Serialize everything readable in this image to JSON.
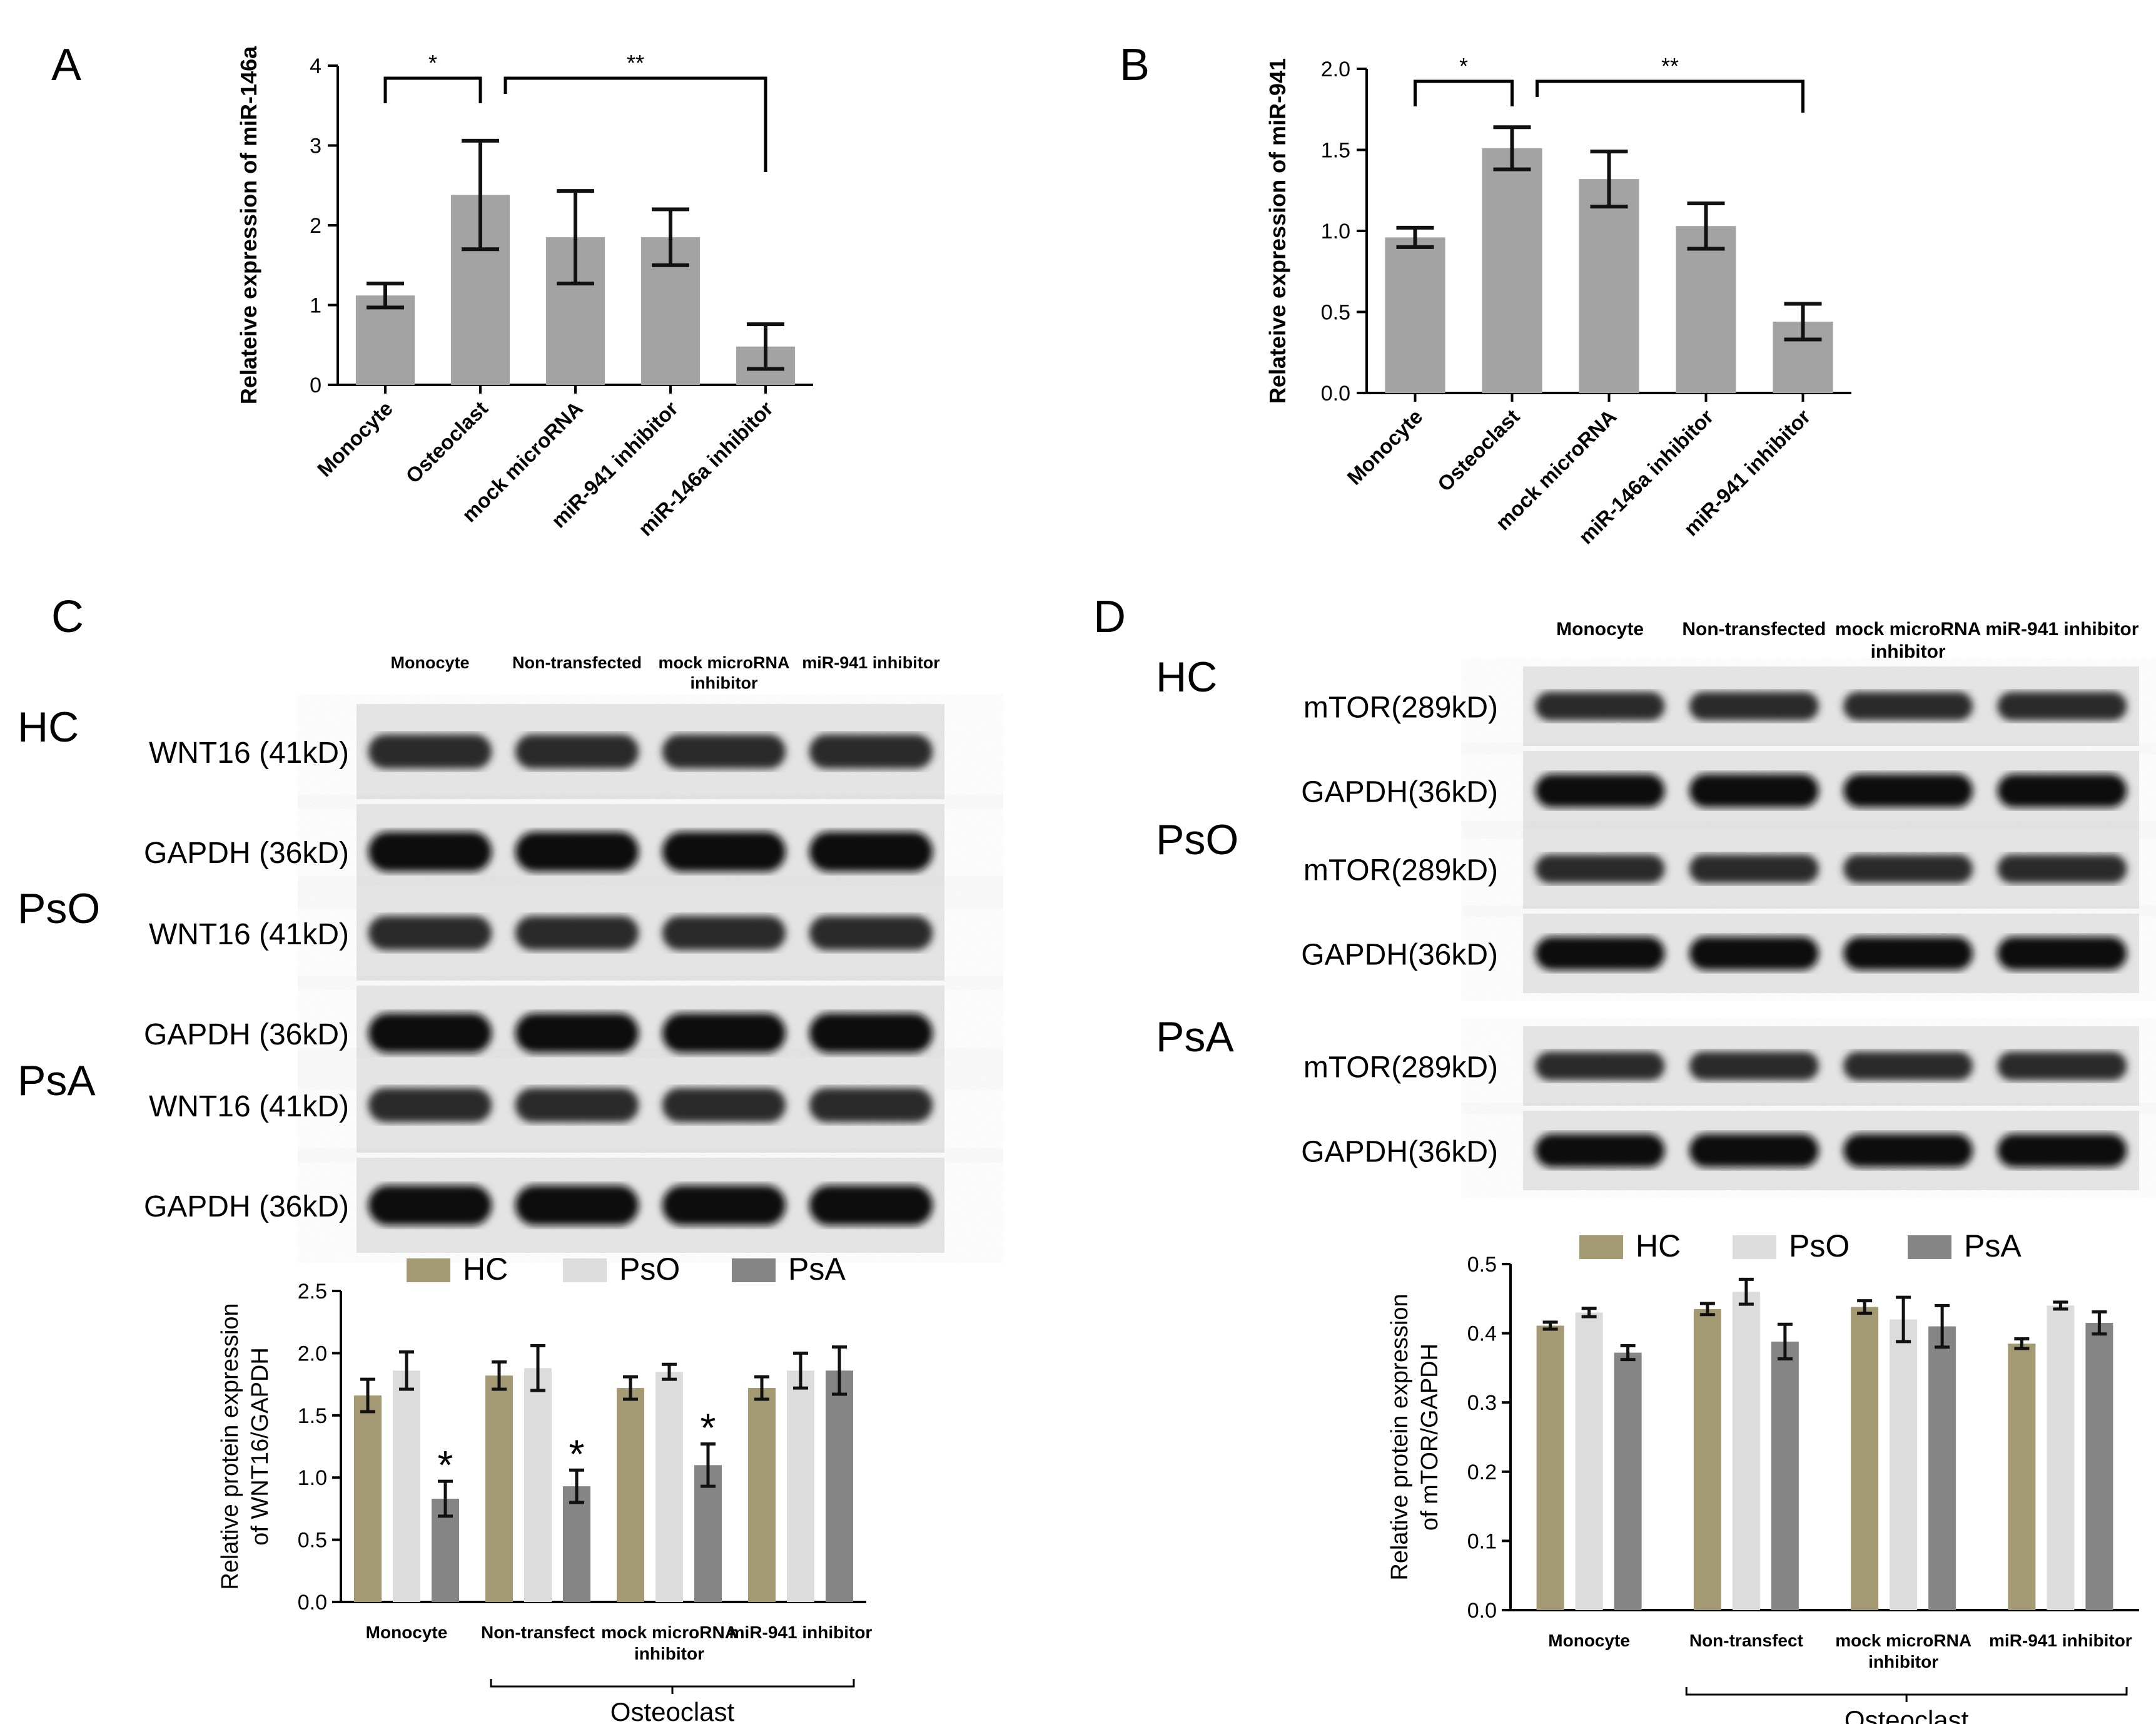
{
  "panels": {
    "A": "A",
    "B": "B",
    "C": "C",
    "D": "D"
  },
  "chart_data": [
    {
      "id": "A",
      "type": "bar",
      "categories": [
        "Monocyte",
        "Osteoclast",
        "mock microRNA",
        "miR-941 inhibitor",
        "miR-146a inhibitor"
      ],
      "values": [
        1.12,
        2.38,
        1.85,
        1.85,
        0.48
      ],
      "errors": [
        0.15,
        0.68,
        0.58,
        0.35,
        0.28
      ],
      "ylabel": "Relateive expression of miR-146a",
      "ylim": [
        0,
        4
      ],
      "yticks": [
        "0",
        "1",
        "2",
        "3",
        "4"
      ],
      "significance": [
        {
          "from": "Monocyte",
          "to": "Osteoclast",
          "label": "*"
        },
        {
          "from": "Osteoclast",
          "to": "miR-146a inhibitor",
          "label": "**"
        }
      ],
      "color": "#a3a3a3"
    },
    {
      "id": "B",
      "type": "bar",
      "categories": [
        "Monocyte",
        "Osteoclast",
        "mock microRNA",
        "miR-146a inhibitor",
        "miR-941 inhibitor"
      ],
      "values": [
        0.96,
        1.51,
        1.32,
        1.03,
        0.44
      ],
      "errors": [
        0.06,
        0.13,
        0.17,
        0.14,
        0.11
      ],
      "ylabel": "Relateive expression of miR-941",
      "ylim": [
        0,
        2.0
      ],
      "yticks": [
        "0.0",
        "0.5",
        "1.0",
        "1.5",
        "2.0"
      ],
      "significance": [
        {
          "from": "Monocyte",
          "to": "Osteoclast",
          "label": "*"
        },
        {
          "from": "Osteoclast",
          "to": "miR-941 inhibitor",
          "label": "**"
        }
      ],
      "color": "#a3a3a3"
    },
    {
      "id": "C",
      "type": "bar",
      "categories": [
        "Monocyte",
        "Non-transfect",
        "mock microRNA\ninhibitor",
        "miR-941 inhibitor"
      ],
      "series": [
        {
          "name": "HC",
          "values": [
            1.66,
            1.82,
            1.72,
            1.72
          ],
          "errors": [
            0.13,
            0.11,
            0.09,
            0.09
          ],
          "color": "#a39a74"
        },
        {
          "name": "PsO",
          "values": [
            1.86,
            1.88,
            1.85,
            1.86
          ],
          "errors": [
            0.15,
            0.18,
            0.06,
            0.14
          ],
          "color": "#dcdcdc"
        },
        {
          "name": "PsA",
          "values": [
            0.83,
            0.93,
            1.1,
            1.86
          ],
          "errors": [
            0.14,
            0.13,
            0.17,
            0.19
          ],
          "color": "#858585"
        }
      ],
      "stars": [
        "*",
        "*",
        "*",
        ""
      ],
      "ylabel": "Relative protein expression\nof WNT16/GAPDH",
      "ylim": [
        0,
        2.5
      ],
      "yticks": [
        "0.0",
        "0.5",
        "1.0",
        "1.5",
        "2.0",
        "2.5"
      ],
      "group_label": "Osteoclast",
      "legend": "top"
    },
    {
      "id": "D",
      "type": "bar",
      "categories": [
        "Monocyte",
        "Non-transfect",
        "mock microRNA\ninhibitor",
        "miR-941 inhibitor"
      ],
      "series": [
        {
          "name": "HC",
          "values": [
            0.411,
            0.435,
            0.438,
            0.385
          ],
          "errors": [
            0.005,
            0.008,
            0.009,
            0.007
          ],
          "color": "#a39a74"
        },
        {
          "name": "PsO",
          "values": [
            0.43,
            0.46,
            0.42,
            0.44
          ],
          "errors": [
            0.006,
            0.018,
            0.032,
            0.005
          ],
          "color": "#dcdcdc"
        },
        {
          "name": "PsA",
          "values": [
            0.372,
            0.388,
            0.41,
            0.415
          ],
          "errors": [
            0.01,
            0.025,
            0.03,
            0.016
          ],
          "color": "#858585"
        }
      ],
      "ylabel": "Relative protein expression\nof mTOR/GAPDH",
      "ylim": [
        0,
        0.5
      ],
      "yticks": [
        "0.0",
        "0.1",
        "0.2",
        "0.3",
        "0.4",
        "0.5"
      ],
      "group_label": "Osteoclast",
      "legend": "top"
    }
  ],
  "blots": {
    "C": {
      "lanes": [
        "Monocyte",
        "Non-transfected",
        "mock microRNA\ninhibitor",
        "miR-941 inhibitor"
      ],
      "groups": [
        {
          "name": "HC",
          "rows": [
            "WNT16 (41kD)",
            "GAPDH (36kD)"
          ]
        },
        {
          "name": "PsO",
          "rows": [
            "WNT16 (41kD)",
            "GAPDH (36kD)"
          ]
        },
        {
          "name": "PsA",
          "rows": [
            "WNT16 (41kD)",
            "GAPDH (36kD)"
          ]
        }
      ]
    },
    "D": {
      "lanes": [
        "Monocyte",
        "Non-transfected",
        "mock microRNA\ninhibitor",
        "miR-941 inhibitor"
      ],
      "groups": [
        {
          "name": "HC",
          "rows": [
            "mTOR(289kD)",
            "GAPDH(36kD)"
          ]
        },
        {
          "name": "PsO",
          "rows": [
            "mTOR(289kD)",
            "GAPDH(36kD)"
          ]
        },
        {
          "name": "PsA",
          "rows": [
            "mTOR(289kD)",
            "GAPDH(36kD)"
          ]
        }
      ]
    }
  }
}
